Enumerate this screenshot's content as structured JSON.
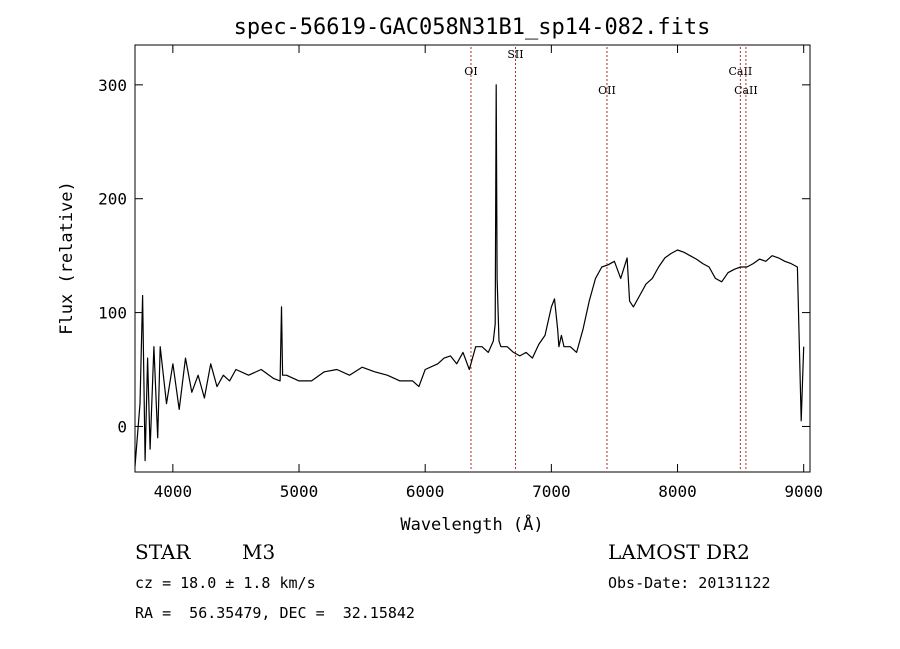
{
  "chart_data": {
    "type": "line",
    "title": "spec-56619-GAC058N31B1_sp14-082.fits",
    "xlabel": "Wavelength (Å)",
    "ylabel": "Flux (relative)",
    "xlim": [
      3700,
      9050
    ],
    "ylim": [
      -40,
      335
    ],
    "xticks": [
      4000,
      5000,
      6000,
      7000,
      8000,
      9000
    ],
    "yticks": [
      0,
      100,
      200,
      300
    ],
    "grid": false,
    "line_color": "#000000",
    "marker_color": "#b03020",
    "series": [
      {
        "x": [
          3700,
          3740,
          3760,
          3780,
          3800,
          3820,
          3850,
          3880,
          3900,
          3950,
          4000,
          4050,
          4100,
          4150,
          4200,
          4250,
          4300,
          4350,
          4400,
          4450,
          4500,
          4600,
          4700,
          4800,
          4850,
          4861,
          4870,
          4900,
          5000,
          5100,
          5200,
          5300,
          5400,
          5500,
          5600,
          5700,
          5800,
          5900,
          5950,
          6000,
          6100,
          6150,
          6200,
          6250,
          6300,
          6350,
          6400,
          6450,
          6500,
          6540,
          6555,
          6563,
          6570,
          6585,
          6600,
          6650,
          6700,
          6750,
          6800,
          6850,
          6900,
          6950,
          7000,
          7025,
          7050,
          7060,
          7080,
          7100,
          7150,
          7200,
          7250,
          7300,
          7350,
          7400,
          7450,
          7500,
          7550,
          7600,
          7620,
          7650,
          7700,
          7750,
          7800,
          7850,
          7900,
          7950,
          8000,
          8050,
          8100,
          8150,
          8200,
          8250,
          8300,
          8350,
          8400,
          8450,
          8500,
          8550,
          8600,
          8650,
          8700,
          8750,
          8800,
          8850,
          8900,
          8950,
          8980,
          9000
        ],
        "y": [
          -35,
          20,
          115,
          -30,
          60,
          -20,
          70,
          -10,
          70,
          20,
          55,
          15,
          60,
          30,
          45,
          25,
          55,
          35,
          45,
          40,
          50,
          45,
          50,
          42,
          40,
          105,
          45,
          45,
          40,
          40,
          48,
          50,
          45,
          52,
          48,
          45,
          40,
          40,
          35,
          50,
          55,
          60,
          62,
          55,
          65,
          50,
          70,
          70,
          65,
          75,
          90,
          300,
          130,
          75,
          70,
          70,
          65,
          62,
          65,
          60,
          72,
          80,
          105,
          112,
          85,
          70,
          80,
          70,
          70,
          65,
          85,
          110,
          130,
          140,
          142,
          145,
          130,
          148,
          110,
          105,
          115,
          125,
          130,
          140,
          148,
          152,
          155,
          153,
          150,
          147,
          143,
          140,
          130,
          127,
          135,
          138,
          140,
          140,
          143,
          147,
          145,
          150,
          148,
          145,
          143,
          140,
          5,
          70
        ]
      }
    ],
    "lines": [
      {
        "label": "OI",
        "x": 6363
      },
      {
        "label": "SII",
        "x": 6716
      },
      {
        "label": "OII",
        "x": 7441
      },
      {
        "label": "CaII",
        "x": 8498
      },
      {
        "label": "CaII",
        "x": 8542
      }
    ]
  },
  "info": {
    "class": "STAR",
    "subclass": "M3",
    "survey": "LAMOST DR2",
    "cz": "cz = 18.0 ± 1.8 km/s",
    "obs_date": "Obs-Date: 20131122",
    "coords": "RA =  56.35479, DEC =  32.15842"
  }
}
